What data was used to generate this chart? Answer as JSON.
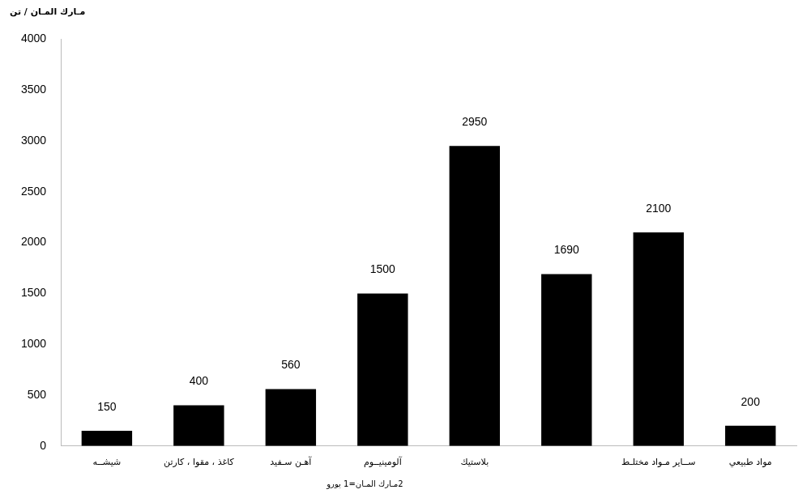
{
  "chart_data": {
    "type": "bar",
    "ylabel": "مـارك المـان / تن",
    "categories": [
      "شيشــه",
      "كاغذ ، مقوا ، كارتن",
      "آهـن سـفيد",
      "آلومينيــوم",
      "بلاستيك",
      null,
      "ســاير مـواد مختلـط",
      "مواد طبيعي"
    ],
    "values": [
      150,
      400,
      560,
      1500,
      2950,
      1690,
      2100,
      200
    ],
    "color": "#000000",
    "ylim": [
      0,
      4000
    ],
    "yticks": [
      0,
      500,
      1000,
      1500,
      2000,
      2500,
      3000,
      3500,
      4000
    ],
    "grid": false,
    "legend": false,
    "data_labels": true,
    "annotations": [
      "2مـارك المـان=1 يورو"
    ]
  }
}
